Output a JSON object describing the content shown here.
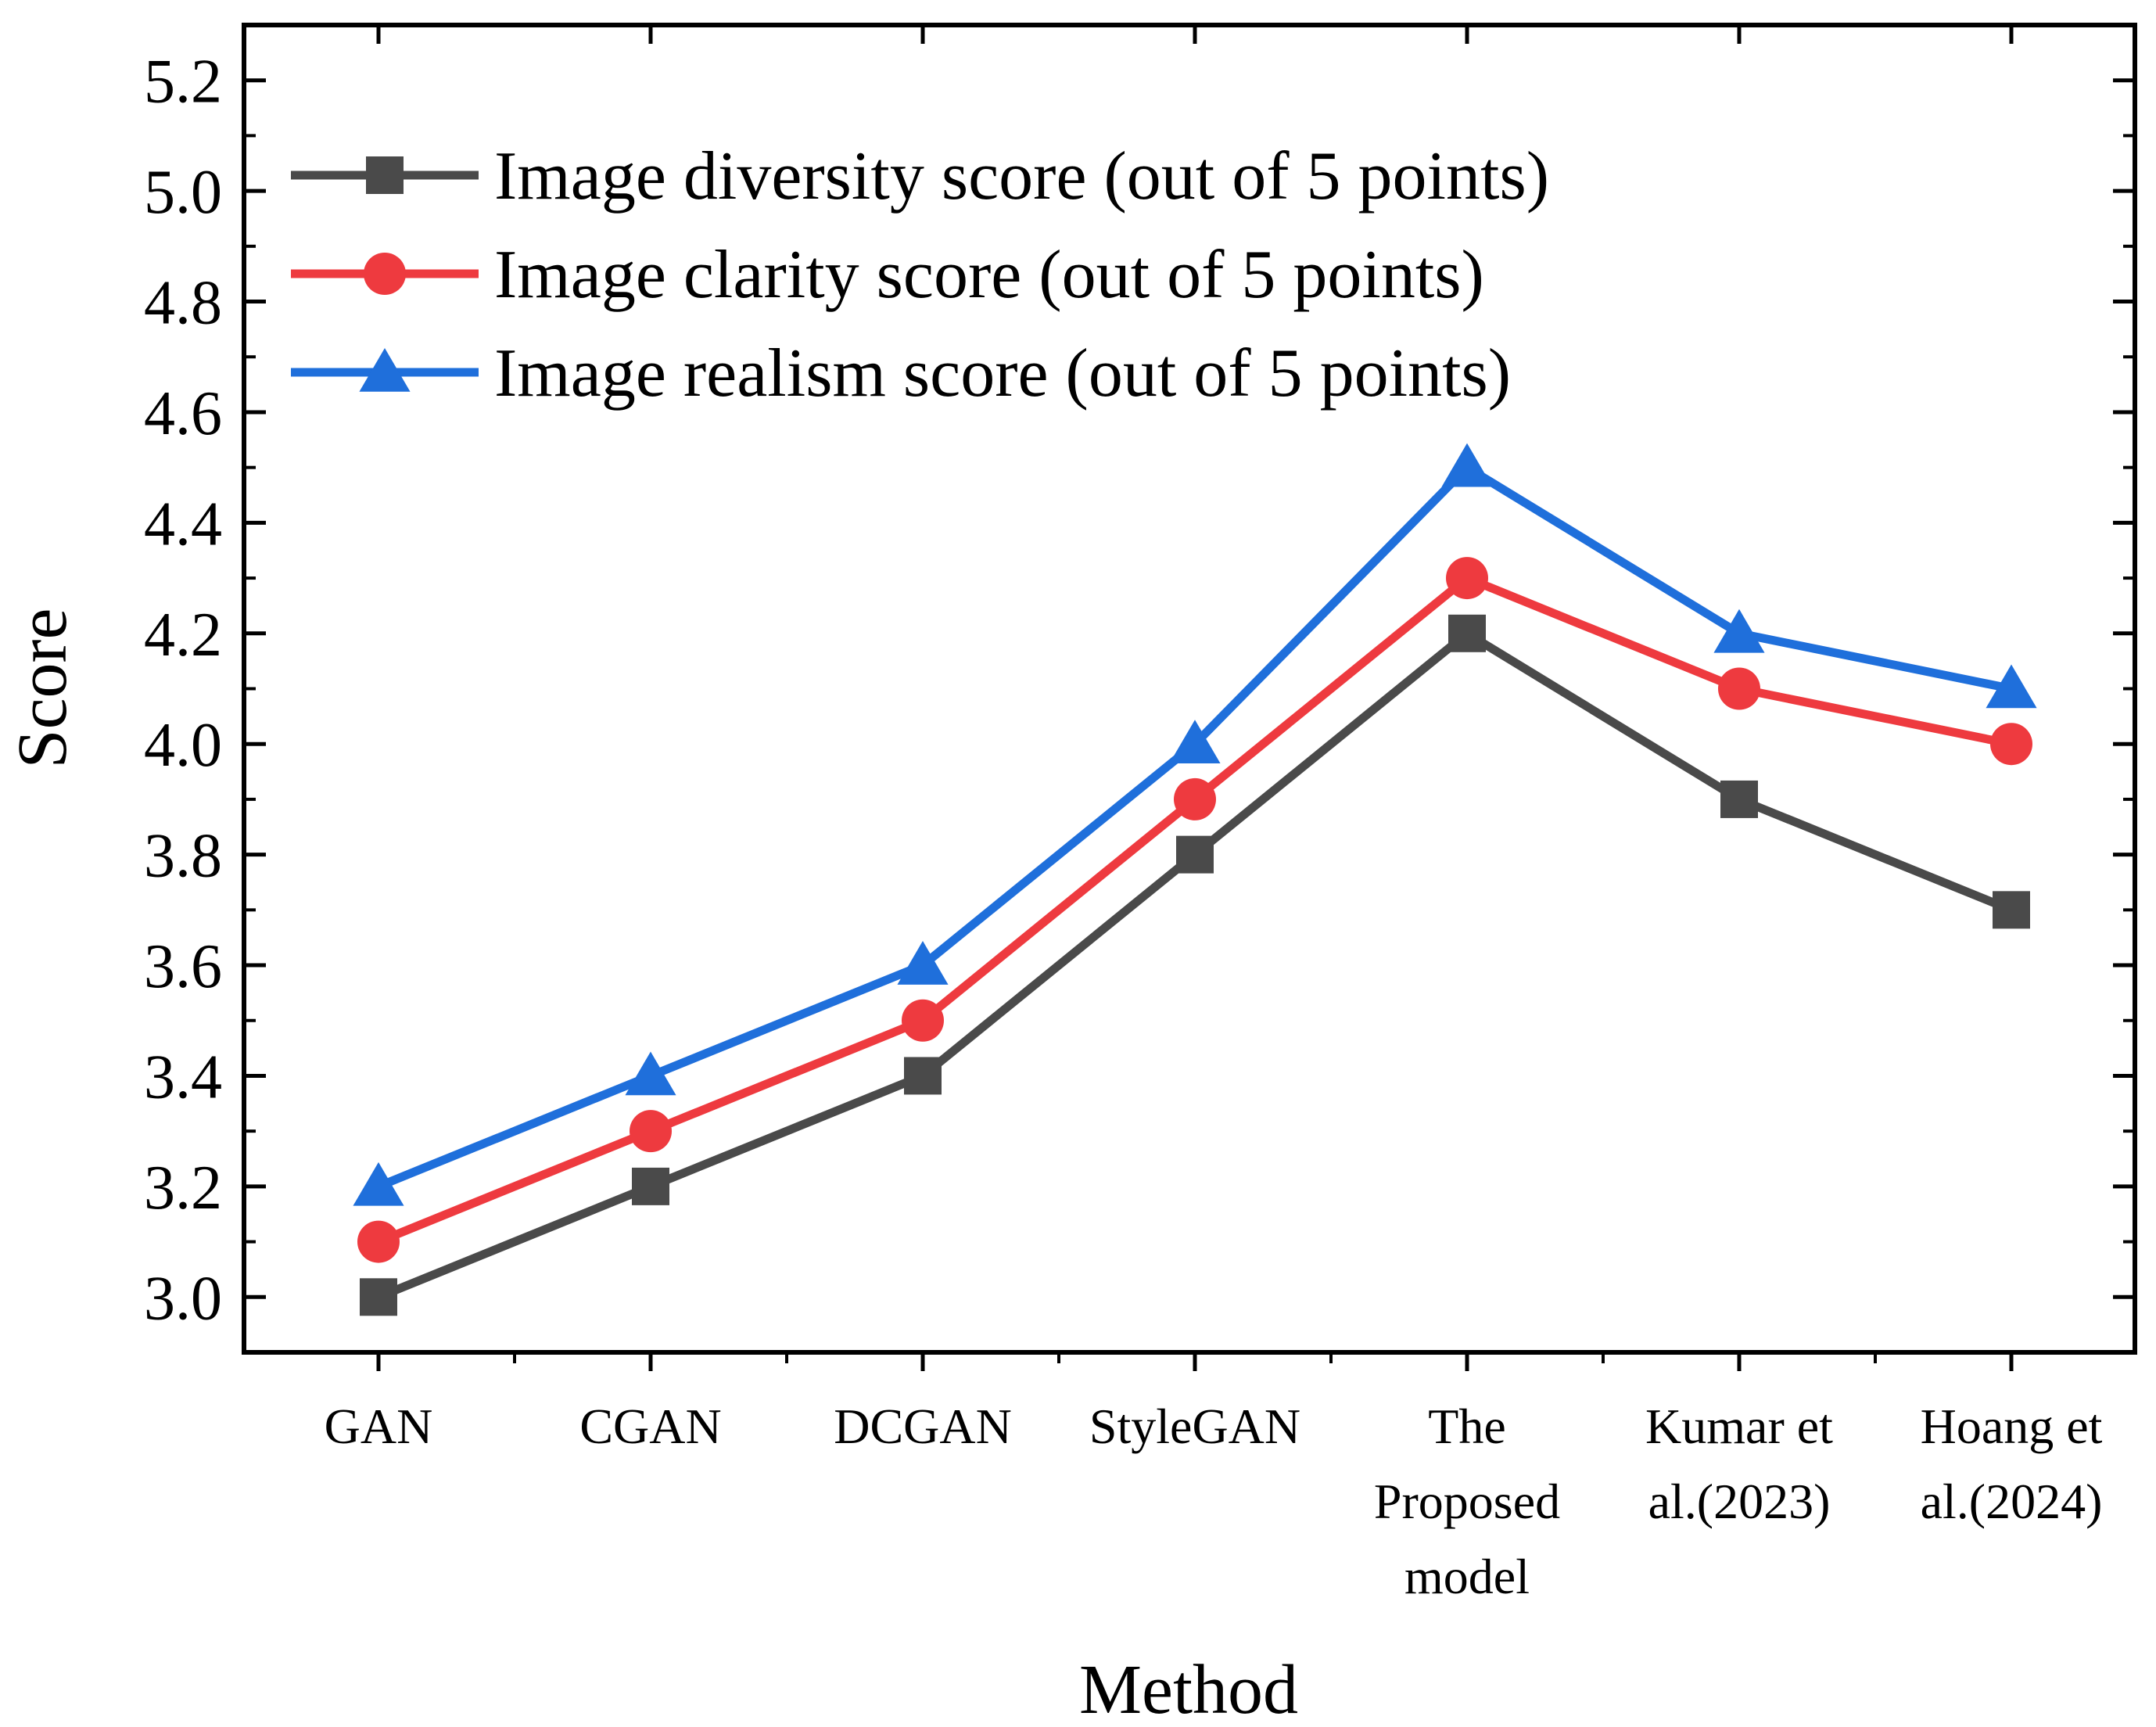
{
  "chart_data": {
    "type": "line",
    "title": "",
    "xlabel": "Method",
    "ylabel": "Score",
    "categories": [
      [
        "GAN"
      ],
      [
        "CGAN"
      ],
      [
        "DCGAN"
      ],
      [
        "StyleGAN"
      ],
      [
        "The",
        "Proposed",
        "model"
      ],
      [
        "Kumar et",
        "al.(2023)"
      ],
      [
        "Hoang et",
        "al.(2024)"
      ]
    ],
    "ylim": [
      2.9,
      5.3
    ],
    "yticks": [
      "3.0",
      "3.2",
      "3.4",
      "3.6",
      "3.8",
      "4.0",
      "4.2",
      "4.4",
      "4.6",
      "4.8",
      "5.0",
      "5.2"
    ],
    "legend_position": "top-left",
    "series": [
      {
        "name": "Image diversity score (out of 5 points)",
        "marker": "square",
        "color": "#4a4a4a",
        "values": [
          3.0,
          3.2,
          3.4,
          3.8,
          4.2,
          3.9,
          3.7
        ]
      },
      {
        "name": "Image clarity score (out of 5 points)",
        "marker": "circle",
        "color": "#ee3a3f",
        "values": [
          3.1,
          3.3,
          3.5,
          3.9,
          4.3,
          4.1,
          4.0
        ]
      },
      {
        "name": "Image realism score (out of 5 points)",
        "marker": "triangle",
        "color": "#1f6fdb",
        "values": [
          3.2,
          3.4,
          3.6,
          4.0,
          4.5,
          4.2,
          4.1
        ]
      }
    ]
  }
}
